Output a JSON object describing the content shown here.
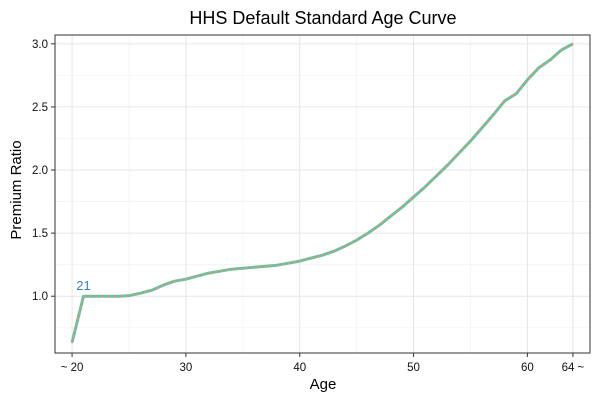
{
  "chart_data": {
    "type": "line",
    "title": "HHS Default Standard Age Curve",
    "xlabel": "Age",
    "ylabel": "Premium Ratio",
    "xlim": [
      18.5,
      65.5
    ],
    "ylim": [
      0.55,
      3.07
    ],
    "grid": true,
    "x_ticks": [
      {
        "value": 20,
        "label": "~ 20"
      },
      {
        "value": 30,
        "label": "30"
      },
      {
        "value": 40,
        "label": "40"
      },
      {
        "value": 50,
        "label": "50"
      },
      {
        "value": 60,
        "label": "60"
      },
      {
        "value": 64,
        "label": "64 ~"
      }
    ],
    "y_ticks": [
      {
        "value": 1.0,
        "label": "1.0"
      },
      {
        "value": 1.5,
        "label": "1.5"
      },
      {
        "value": 2.0,
        "label": "2.0"
      },
      {
        "value": 2.5,
        "label": "2.5"
      },
      {
        "value": 3.0,
        "label": "3.0"
      }
    ],
    "series": [
      {
        "line_color": "#66c2a5",
        "dot_color": "#fc8d62",
        "x": [
          20,
          21,
          22,
          23,
          24,
          25,
          26,
          27,
          28,
          29,
          30,
          31,
          32,
          33,
          34,
          35,
          36,
          37,
          38,
          39,
          40,
          41,
          42,
          43,
          44,
          45,
          46,
          47,
          48,
          49,
          50,
          51,
          52,
          53,
          54,
          55,
          56,
          57,
          58,
          59,
          60,
          61,
          62,
          63,
          64
        ],
        "y": [
          0.635,
          1.0,
          1.0,
          1.0,
          1.0,
          1.004,
          1.024,
          1.048,
          1.087,
          1.119,
          1.135,
          1.159,
          1.183,
          1.198,
          1.214,
          1.222,
          1.23,
          1.238,
          1.246,
          1.262,
          1.278,
          1.302,
          1.325,
          1.357,
          1.397,
          1.444,
          1.5,
          1.563,
          1.635,
          1.706,
          1.786,
          1.865,
          1.952,
          2.04,
          2.135,
          2.23,
          2.333,
          2.437,
          2.548,
          2.603,
          2.714,
          2.81,
          2.873,
          2.952,
          3.0
        ]
      }
    ],
    "annotations": [
      {
        "x": 21,
        "y": 1.0,
        "text": "21"
      }
    ]
  }
}
